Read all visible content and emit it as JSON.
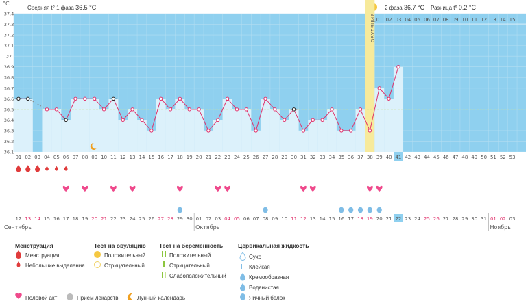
{
  "unit": "°C",
  "header": {
    "phase1_label": "Средняя t° 1 фаза",
    "phase1_value": "36.5 °C",
    "phase2_label": "2 фаза",
    "phase2_value": "36.7 °C",
    "diff_label": "Разница t°",
    "diff_value": "0.2 °C"
  },
  "ovulation_label": "ОВУЛЯЦИЯ",
  "chart_data": {
    "type": "line",
    "ylim": [
      36.1,
      37.4
    ],
    "yticks": [
      36.1,
      36.2,
      36.3,
      36.4,
      36.5,
      36.6,
      36.7,
      36.8,
      36.9,
      37,
      37.1,
      37.2,
      37.3,
      37.4
    ],
    "y_tick_labels": [
      "36.1",
      "36.2",
      "36.3",
      "36.4",
      "36.5",
      "36.6",
      "36.7",
      "36.8",
      "36.9",
      "37",
      "37.1",
      "37.2",
      "37.3",
      "37.4"
    ],
    "cycle_days": [
      "01",
      "02",
      "03",
      "04",
      "05",
      "06",
      "07",
      "08",
      "09",
      "10",
      "11",
      "12",
      "13",
      "14",
      "15",
      "16",
      "17",
      "18",
      "19",
      "20",
      "21",
      "22",
      "23",
      "24",
      "25",
      "26",
      "27",
      "28",
      "29",
      "30",
      "31",
      "32",
      "33",
      "34",
      "35",
      "36",
      "37",
      "38",
      "39",
      "40",
      "41",
      "42",
      "43",
      "44",
      "45",
      "46",
      "47",
      "48",
      "49",
      "50",
      "51",
      "52",
      "53"
    ],
    "temperatures": [
      36.6,
      36.6,
      null,
      36.5,
      36.5,
      36.4,
      36.6,
      36.6,
      36.6,
      36.5,
      36.6,
      36.4,
      36.5,
      36.4,
      36.3,
      36.6,
      36.5,
      36.6,
      36.5,
      36.5,
      36.3,
      36.4,
      36.6,
      36.5,
      36.5,
      36.3,
      36.6,
      36.5,
      36.4,
      36.5,
      36.3,
      36.4,
      36.4,
      36.5,
      36.3,
      36.3,
      36.5,
      36.3,
      36.7,
      36.6,
      36.9
    ],
    "excluded_days": [
      "01",
      "02",
      "06",
      "11",
      "30"
    ],
    "coverline": 36.5,
    "ovulation_day": "38",
    "current_day": "41",
    "phase2_day_numbers": [
      "01",
      "02",
      "03",
      "04",
      "05",
      "06",
      "07",
      "08",
      "09",
      "10",
      "11",
      "12",
      "13",
      "14",
      "15"
    ],
    "dates": [
      "12",
      "13",
      "14",
      "15",
      "16",
      "17",
      "18",
      "19",
      "20",
      "21",
      "22",
      "23",
      "24",
      "25",
      "26",
      "27",
      "28",
      "29",
      "30",
      "01",
      "02",
      "03",
      "04",
      "05",
      "06",
      "07",
      "08",
      "09",
      "10",
      "11",
      "12",
      "13",
      "14",
      "15",
      "16",
      "17",
      "18",
      "19",
      "20",
      "21",
      "22",
      "23",
      "24",
      "25",
      "26",
      "27",
      "28",
      "29",
      "30",
      "31",
      "01",
      "02",
      "03"
    ],
    "weekend_date_index": [
      1,
      2,
      8,
      9,
      15,
      16,
      22,
      23,
      29,
      30,
      36,
      37,
      43,
      44,
      50,
      51
    ],
    "today_date_index": 40,
    "month_labels": [
      {
        "i": 0,
        "text": "Сентябрь"
      },
      {
        "i": 19,
        "text": "Октябрь"
      },
      {
        "i": 50,
        "text": "Ноябрь"
      }
    ]
  },
  "markers": {
    "menstruation": [
      0,
      1,
      2
    ],
    "light_bleeding": [
      3,
      4,
      5
    ],
    "intercourse": [
      5,
      7,
      10,
      12,
      17,
      21,
      22,
      30,
      31,
      37,
      38
    ],
    "mucus_eggwhite": [
      17,
      26,
      34,
      35,
      36,
      37,
      38
    ]
  },
  "legend": {
    "menstruation": {
      "title": "Менструация",
      "items": [
        "Менструация",
        "Небольшие выделения"
      ]
    },
    "ovulation_test": {
      "title": "Тест на овуляцию",
      "items": [
        "Положительный",
        "Отрицательный"
      ]
    },
    "pregnancy_test": {
      "title": "Тест на беременность",
      "items": [
        "Положительный",
        "Отрицательный",
        "Слабоположительный"
      ]
    },
    "mucus": {
      "title": "Цервикальная жидкость",
      "items": [
        "Сухо",
        "Клейкая",
        "Кремообразная",
        "Водянистая",
        "Яичный белок"
      ]
    },
    "bottom": [
      "Половой акт",
      "Прием лекарств",
      "Лунный календарь"
    ]
  },
  "colors": {
    "chart_bg": "#8fd0ef",
    "fill": "#dcf1fb",
    "line": "#e0306a",
    "ovulation": "#f7ea9b",
    "current": "#8fd0ef",
    "heart": "#ef4a8c",
    "drop_red": "#e03b3b",
    "drop_blue": "#7fbde6",
    "weekend": "#e0306a"
  }
}
